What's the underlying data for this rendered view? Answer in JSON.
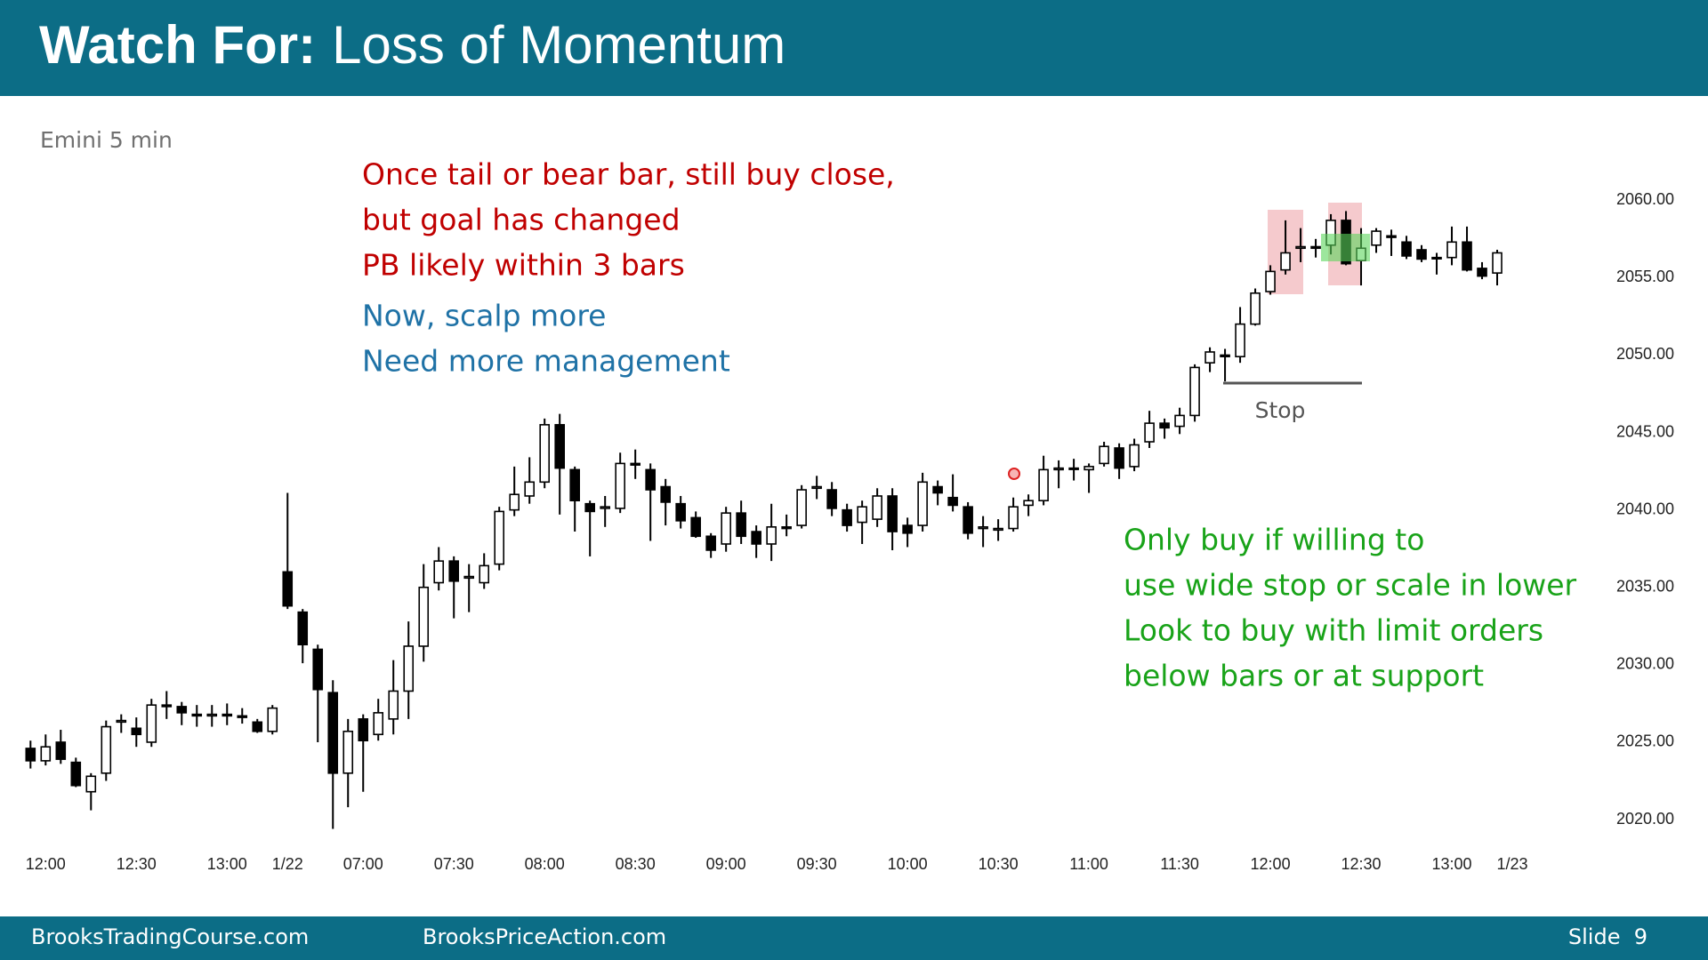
{
  "header": {
    "title_bold": "Watch For:",
    "title": "Loss of Momentum"
  },
  "footer": {
    "left": "BrooksTradingCourse.com",
    "middle": "BrooksPriceAction.com",
    "slide": "Slide  9"
  },
  "chart_data": {
    "type": "candlestick",
    "subtitle": "Emini 5 min",
    "up_color": "#ffffff",
    "down_color": "#000000",
    "open": [
      2024.6,
      2023.8,
      2025.0,
      2023.7,
      2021.8,
      2023.0,
      2026.3,
      2025.9,
      2025.0,
      2027.4,
      2027.3,
      2026.8,
      2026.7,
      2026.8,
      2026.7,
      2026.3,
      2025.7,
      2036.0,
      2033.4,
      2031.0,
      2028.2,
      2023.0,
      2026.5,
      2025.5,
      2026.5,
      2028.3,
      2031.2,
      2035.3,
      2036.7,
      2035.6,
      2035.3,
      2036.5,
      2040.0,
      2040.9,
      2041.8,
      2045.5,
      2042.6,
      2040.4,
      2040.1,
      2040.1,
      2043.0,
      2042.6,
      2041.5,
      2040.4,
      2039.5,
      2038.3,
      2037.8,
      2039.8,
      2038.6,
      2037.8,
      2038.9,
      2039.0,
      2041.4,
      2041.3,
      2040.0,
      2039.2,
      2039.4,
      2040.9,
      2039.0,
      2039.0,
      2041.5,
      2040.8,
      2040.2,
      2038.8,
      2038.7,
      2038.8,
      2040.3,
      2040.6,
      2042.6,
      2042.7,
      2042.6,
      2043.0,
      2044.0,
      2042.8,
      2044.4,
      2045.6,
      2045.4,
      2046.1,
      2049.5,
      2050.0,
      2049.9,
      2052.0,
      2054.1,
      2055.5,
      2056.9,
      2057.0,
      2057.1,
      2058.7,
      2056.1,
      2057.1,
      2057.7,
      2057.3,
      2056.8,
      2056.3,
      2056.3,
      2057.3,
      2055.6,
      2055.3
    ],
    "high": [
      2025.1,
      2025.5,
      2025.8,
      2024.0,
      2023.0,
      2026.4,
      2026.8,
      2026.6,
      2027.8,
      2028.3,
      2027.6,
      2027.4,
      2027.4,
      2027.5,
      2027.2,
      2026.5,
      2027.4,
      2041.1,
      2033.6,
      2031.3,
      2029.0,
      2026.5,
      2026.8,
      2027.8,
      2030.3,
      2032.8,
      2036.5,
      2037.6,
      2037.0,
      2036.5,
      2037.2,
      2040.2,
      2042.8,
      2043.4,
      2045.9,
      2046.2,
      2042.8,
      2040.6,
      2040.9,
      2043.7,
      2043.9,
      2043.0,
      2042.0,
      2040.9,
      2039.9,
      2038.5,
      2040.2,
      2040.6,
      2039.0,
      2040.4,
      2039.7,
      2041.6,
      2042.2,
      2041.8,
      2040.4,
      2040.6,
      2041.4,
      2041.4,
      2039.5,
      2042.4,
      2041.9,
      2042.3,
      2040.5,
      2039.6,
      2039.4,
      2040.8,
      2041.0,
      2043.5,
      2043.2,
      2043.3,
      2043.0,
      2044.4,
      2044.3,
      2044.6,
      2046.4,
      2045.9,
      2046.6,
      2049.4,
      2050.5,
      2050.4,
      2053.1,
      2054.3,
      2055.8,
      2058.7,
      2058.2,
      2057.5,
      2059.1,
      2059.3,
      2058.2,
      2058.2,
      2058.1,
      2057.7,
      2057.1,
      2056.6,
      2058.3,
      2058.3,
      2056.0,
      2056.8
    ],
    "low": [
      2023.3,
      2023.5,
      2023.6,
      2022.1,
      2020.6,
      2022.5,
      2025.6,
      2024.7,
      2024.7,
      2026.5,
      2026.1,
      2026.0,
      2026.0,
      2026.1,
      2026.2,
      2025.6,
      2025.5,
      2033.6,
      2030.1,
      2025.0,
      2019.4,
      2020.8,
      2021.8,
      2025.1,
      2025.5,
      2026.5,
      2030.2,
      2034.8,
      2033.0,
      2033.4,
      2034.9,
      2036.1,
      2039.6,
      2040.4,
      2041.4,
      2039.7,
      2038.6,
      2037.0,
      2038.9,
      2039.8,
      2042.0,
      2038.0,
      2039.0,
      2038.8,
      2038.2,
      2036.9,
      2037.3,
      2037.8,
      2036.9,
      2036.7,
      2038.3,
      2038.8,
      2040.7,
      2039.6,
      2038.6,
      2037.8,
      2038.9,
      2037.4,
      2037.6,
      2038.6,
      2040.3,
      2039.9,
      2038.1,
      2037.6,
      2038.0,
      2038.6,
      2039.6,
      2040.3,
      2041.4,
      2041.9,
      2041.1,
      2042.8,
      2042.0,
      2042.5,
      2044.0,
      2044.6,
      2044.9,
      2045.7,
      2048.9,
      2048.3,
      2049.5,
      2051.9,
      2053.9,
      2055.2,
      2056.0,
      2056.3,
      2056.5,
      2055.8,
      2054.5,
      2056.6,
      2056.4,
      2056.2,
      2056.0,
      2055.2,
      2055.8,
      2055.4,
      2054.9,
      2054.5
    ],
    "close": [
      2023.8,
      2024.7,
      2023.9,
      2022.2,
      2022.8,
      2026.0,
      2026.4,
      2025.5,
      2027.4,
      2027.3,
      2026.9,
      2026.7,
      2026.8,
      2026.7,
      2026.6,
      2025.7,
      2027.2,
      2033.8,
      2031.3,
      2028.4,
      2023.0,
      2025.7,
      2025.1,
      2026.9,
      2028.3,
      2031.2,
      2035.0,
      2036.7,
      2035.4,
      2035.7,
      2036.4,
      2039.9,
      2041.0,
      2041.8,
      2045.5,
      2042.7,
      2040.6,
      2039.9,
      2040.2,
      2043.0,
      2042.9,
      2041.3,
      2040.5,
      2039.3,
      2038.3,
      2037.4,
      2039.8,
      2038.3,
      2037.8,
      2038.9,
      2038.8,
      2041.3,
      2041.5,
      2040.1,
      2039.0,
      2040.2,
      2040.9,
      2038.6,
      2038.5,
      2041.8,
      2041.1,
      2040.3,
      2038.5,
      2038.9,
      2038.8,
      2040.2,
      2040.6,
      2042.6,
      2042.7,
      2042.7,
      2042.8,
      2044.1,
      2042.7,
      2044.2,
      2045.6,
      2045.3,
      2046.1,
      2049.2,
      2050.2,
      2049.9,
      2052.0,
      2054.0,
      2055.4,
      2056.6,
      2057.0,
      2056.9,
      2058.7,
      2055.9,
      2056.9,
      2058.0,
      2057.6,
      2056.4,
      2056.2,
      2056.3,
      2057.3,
      2055.5,
      2055.1,
      2056.6
    ],
    "xlim": [
      -1,
      103
    ],
    "xticks": [
      {
        "value": 1,
        "label": "12:00"
      },
      {
        "value": 7,
        "label": "12:30"
      },
      {
        "value": 13,
        "label": "13:00"
      },
      {
        "value": 17,
        "label": "1/22"
      },
      {
        "value": 22,
        "label": "07:00"
      },
      {
        "value": 28,
        "label": "07:30"
      },
      {
        "value": 34,
        "label": "08:00"
      },
      {
        "value": 40,
        "label": "08:30"
      },
      {
        "value": 46,
        "label": "09:00"
      },
      {
        "value": 52,
        "label": "09:30"
      },
      {
        "value": 58,
        "label": "10:00"
      },
      {
        "value": 64,
        "label": "10:30"
      },
      {
        "value": 70,
        "label": "11:00"
      },
      {
        "value": 76,
        "label": "11:30"
      },
      {
        "value": 82,
        "label": "12:00"
      },
      {
        "value": 88,
        "label": "12:30"
      },
      {
        "value": 94,
        "label": "13:00"
      },
      {
        "value": 98,
        "label": "1/23"
      }
    ],
    "ylim": [
      2018.5,
      2062.5
    ],
    "yticks": [
      {
        "value": 2020,
        "label": "2020.00"
      },
      {
        "value": 2025,
        "label": "2025.00"
      },
      {
        "value": 2030,
        "label": "2030.00"
      },
      {
        "value": 2035,
        "label": "2035.00"
      },
      {
        "value": 2040,
        "label": "2040.00"
      },
      {
        "value": 2045,
        "label": "2045.00"
      },
      {
        "value": 2050,
        "label": "2050.00"
      },
      {
        "value": 2055,
        "label": "2055.00"
      },
      {
        "value": 2060,
        "label": "2060.00"
      }
    ],
    "stop_label": "Stop",
    "annotations": [
      {
        "color": "#c00000",
        "lines": [
          "Once tail or bear bar, still buy close,",
          "but goal has changed",
          "PB likely within 3 bars"
        ]
      },
      {
        "color": "#1f72a6",
        "lines": [
          "Now, scalp more",
          "Need more management"
        ]
      },
      {
        "color": "#19a319",
        "lines": [
          "Only buy if willing to",
          "use wide stop or scale in lower",
          "Look to buy with limit orders",
          "below bars or at support"
        ]
      }
    ]
  }
}
